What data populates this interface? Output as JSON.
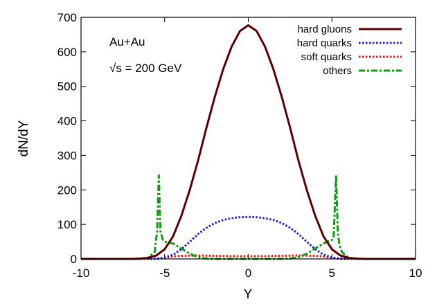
{
  "chart_data": {
    "type": "line",
    "xlabel": "Y",
    "ylabel": "dN/dY",
    "xlim": [
      -10,
      10
    ],
    "ylim": [
      0,
      700
    ],
    "xticks": [
      -10,
      -5,
      0,
      5,
      10
    ],
    "yticks": [
      0,
      100,
      200,
      300,
      400,
      500,
      600,
      700
    ],
    "grid": false,
    "legend_position": "top-right",
    "annotations": [
      "Au+Au",
      "√s = 200 GeV"
    ],
    "series": [
      {
        "name": "hard gluons",
        "color": "#5a0000",
        "dash": "solid",
        "x": [
          -10,
          -7,
          -6.5,
          -6,
          -5.5,
          -5,
          -4.5,
          -4,
          -3.5,
          -3,
          -2.5,
          -2,
          -1.5,
          -1,
          -0.5,
          0,
          0.5,
          1,
          1.5,
          2,
          2.5,
          3,
          3.5,
          4,
          4.5,
          5,
          5.5,
          6,
          6.5,
          7,
          10
        ],
        "y": [
          0,
          0,
          1,
          3,
          10,
          28,
          65,
          125,
          200,
          285,
          380,
          470,
          550,
          615,
          660,
          677,
          660,
          615,
          550,
          470,
          380,
          285,
          200,
          125,
          65,
          28,
          10,
          3,
          1,
          0,
          0
        ]
      },
      {
        "name": "hard quarks",
        "color": "#1a1aee",
        "dash": "dotted",
        "x": [
          -10,
          -6,
          -5.5,
          -5,
          -4.5,
          -4,
          -3.5,
          -3,
          -2.5,
          -2,
          -1.5,
          -1,
          -0.5,
          0,
          0.5,
          1,
          1.5,
          2,
          2.5,
          3,
          3.5,
          4,
          4.5,
          5,
          5.5,
          6,
          10
        ],
        "y": [
          0,
          0,
          1,
          4,
          12,
          28,
          50,
          72,
          90,
          104,
          113,
          118,
          121,
          122,
          121,
          118,
          113,
          104,
          90,
          72,
          50,
          28,
          12,
          4,
          1,
          0,
          0
        ]
      },
      {
        "name": "soft quarks",
        "color": "#ee1111",
        "dash": "dotted",
        "x": [
          -10,
          -5.5,
          -5,
          -4.5,
          -4,
          -3,
          -2,
          -1,
          0,
          1,
          2,
          3,
          4,
          4.5,
          5,
          5.5,
          10
        ],
        "y": [
          0,
          0,
          3,
          7,
          9,
          10,
          9,
          8,
          8,
          8,
          9,
          10,
          9,
          7,
          3,
          0,
          0
        ]
      },
      {
        "name": "others",
        "color": "#119911",
        "dash": "dashdot",
        "x": [
          -10,
          -6.5,
          -6,
          -5.6,
          -5.45,
          -5.35,
          -5.25,
          -5.1,
          -5,
          -4.5,
          -4,
          -3.5,
          -3,
          -2.5,
          -2,
          0,
          2,
          2.5,
          3,
          3.5,
          4,
          4.5,
          5,
          5.1,
          5.25,
          5.35,
          5.45,
          5.6,
          6,
          6.5,
          10
        ],
        "y": [
          0,
          0,
          3,
          20,
          80,
          242,
          80,
          55,
          50,
          45,
          30,
          15,
          5,
          1,
          0,
          0,
          0,
          1,
          5,
          15,
          30,
          45,
          55,
          60,
          242,
          80,
          40,
          20,
          3,
          0,
          0
        ]
      }
    ]
  }
}
